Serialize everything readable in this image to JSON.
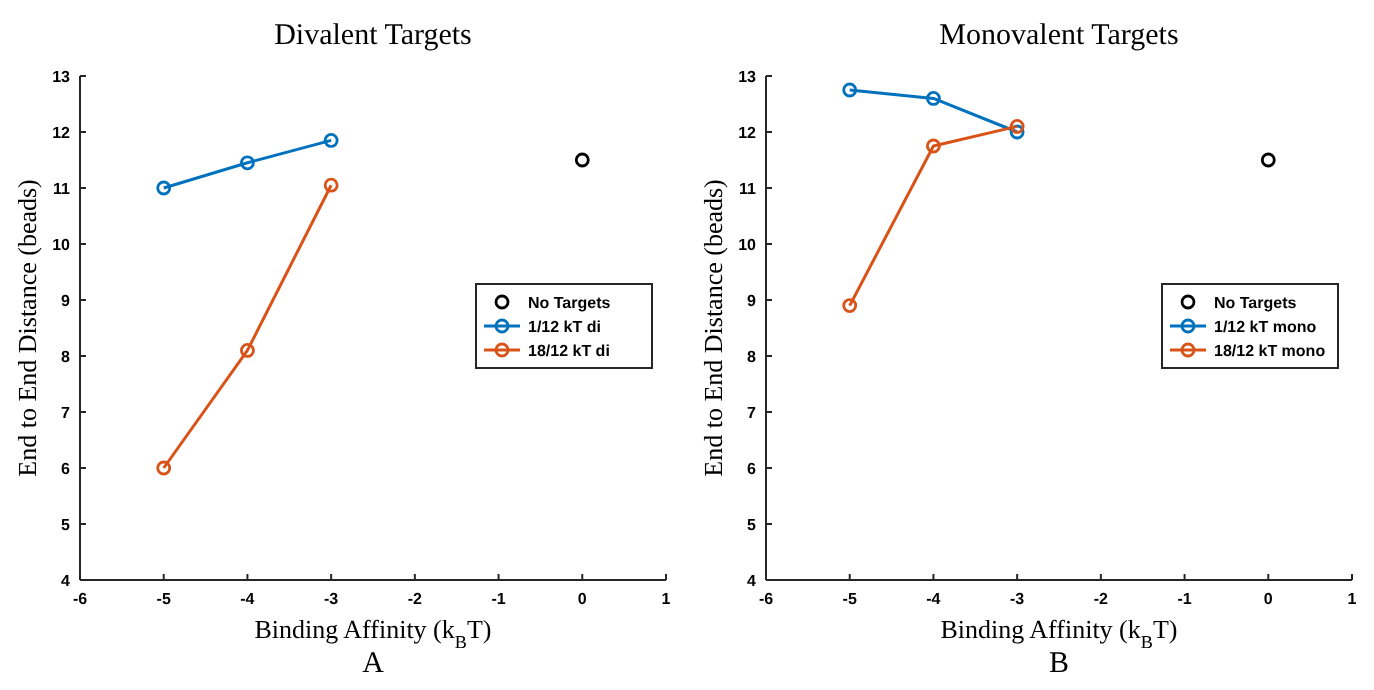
{
  "chart_data": [
    {
      "type": "line",
      "title": "Divalent Targets",
      "xlabel": "Binding Affinity (k$_{B}$T)",
      "ylabel": "End to End Distance (beads)",
      "annotations": [
        "A"
      ],
      "xlim": [
        -6,
        1
      ],
      "xticks": [
        -6,
        -5,
        -4,
        -3,
        -2,
        -1,
        0,
        1
      ],
      "ylim": [
        4,
        13
      ],
      "yticks": [
        4,
        5,
        6,
        7,
        8,
        9,
        10,
        11,
        12,
        13
      ],
      "grid": false,
      "legend": "right",
      "marker": "circle",
      "series": [
        {
          "name": "No Targets",
          "type": "scatter",
          "color": "#000000",
          "x": [
            0
          ],
          "values": [
            11.5
          ]
        },
        {
          "name": "1/12 kT di",
          "color": "#0072bd",
          "x": [
            -5,
            -4,
            -3
          ],
          "values": [
            11.0,
            11.45,
            11.85
          ]
        },
        {
          "name": "18/12 kT di",
          "color": "#d95319",
          "x": [
            -5,
            -4,
            -3
          ],
          "values": [
            6.0,
            8.1,
            11.05
          ]
        }
      ]
    },
    {
      "type": "line",
      "title": "Monovalent Targets",
      "xlabel": "Binding Affinity (k$_{B}$T)",
      "ylabel": "End to End Distance (beads)",
      "annotations": [
        "B"
      ],
      "xlim": [
        -6,
        1
      ],
      "xticks": [
        -6,
        -5,
        -4,
        -3,
        -2,
        -1,
        0,
        1
      ],
      "ylim": [
        4,
        13
      ],
      "yticks": [
        4,
        5,
        6,
        7,
        8,
        9,
        10,
        11,
        12,
        13
      ],
      "grid": false,
      "legend": "right",
      "marker": "circle",
      "series": [
        {
          "name": "No Targets",
          "type": "scatter",
          "color": "#000000",
          "x": [
            0
          ],
          "values": [
            11.5
          ]
        },
        {
          "name": "1/12 kT mono",
          "color": "#0072bd",
          "x": [
            -5,
            -4,
            -3
          ],
          "values": [
            12.75,
            12.6,
            12.0
          ]
        },
        {
          "name": "18/12 kT mono",
          "color": "#d95319",
          "x": [
            -5,
            -4,
            -3
          ],
          "values": [
            8.9,
            11.75,
            12.1
          ]
        }
      ]
    }
  ]
}
